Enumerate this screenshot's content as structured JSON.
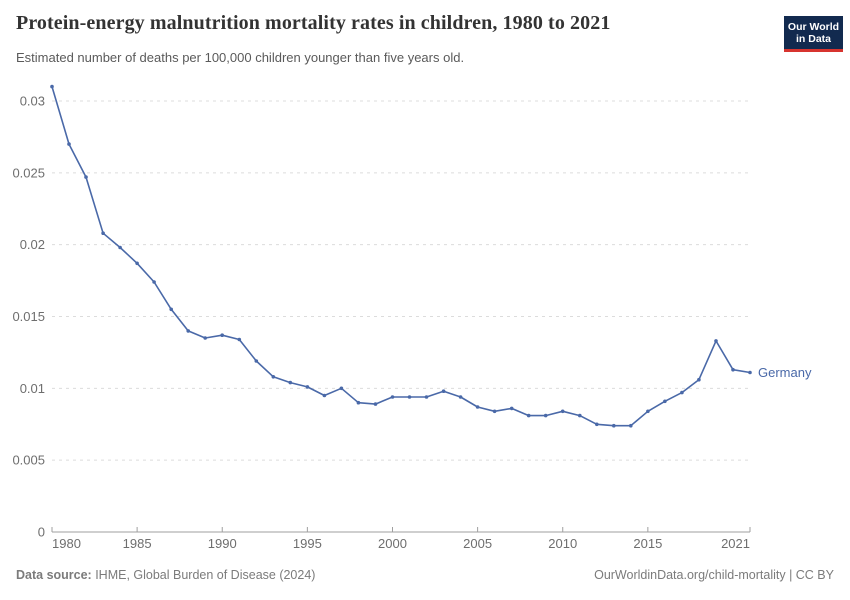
{
  "header": {
    "title": "Protein-energy malnutrition mortality rates in children, 1980 to 2021",
    "subtitle": "Estimated number of deaths per 100,000 children younger than five years old.",
    "logo": {
      "line1": "Our World",
      "line2": "in Data",
      "bg_color": "#122A4F",
      "bar_color": "#D7342F"
    }
  },
  "chart_data": {
    "type": "line",
    "title": "Protein-energy malnutrition mortality rates in children, 1980 to 2021",
    "subtitle": "Estimated number of deaths per 100,000 children younger than five years old.",
    "xlabel": "",
    "ylabel": "",
    "xlim": [
      1980,
      2021
    ],
    "ylim": [
      0,
      0.031
    ],
    "grid": "horizontal-dashed",
    "legend": "end-of-line-label",
    "x_ticks": [
      {
        "value": 1980,
        "label": "1980"
      },
      {
        "value": 1985,
        "label": "1985"
      },
      {
        "value": 1990,
        "label": "1990"
      },
      {
        "value": 1995,
        "label": "1995"
      },
      {
        "value": 2000,
        "label": "2000"
      },
      {
        "value": 2005,
        "label": "2005"
      },
      {
        "value": 2010,
        "label": "2010"
      },
      {
        "value": 2015,
        "label": "2015"
      },
      {
        "value": 2021,
        "label": "2021"
      }
    ],
    "y_ticks": [
      {
        "value": 0,
        "label": "0"
      },
      {
        "value": 0.005,
        "label": "0.005"
      },
      {
        "value": 0.01,
        "label": "0.01"
      },
      {
        "value": 0.015,
        "label": "0.015"
      },
      {
        "value": 0.02,
        "label": "0.02"
      },
      {
        "value": 0.025,
        "label": "0.025"
      },
      {
        "value": 0.03,
        "label": "0.03"
      }
    ],
    "series": [
      {
        "name": "Germany",
        "color": "#4A69A8",
        "years": [
          1980,
          1981,
          1982,
          1983,
          1984,
          1985,
          1986,
          1987,
          1988,
          1989,
          1990,
          1991,
          1992,
          1993,
          1994,
          1995,
          1996,
          1997,
          1998,
          1999,
          2000,
          2001,
          2002,
          2003,
          2004,
          2005,
          2006,
          2007,
          2008,
          2009,
          2010,
          2011,
          2012,
          2013,
          2014,
          2015,
          2016,
          2017,
          2018,
          2019,
          2020,
          2021
        ],
        "values": [
          0.031,
          0.027,
          0.0247,
          0.0208,
          0.0198,
          0.0187,
          0.0174,
          0.0155,
          0.014,
          0.0135,
          0.0137,
          0.0134,
          0.0119,
          0.0108,
          0.0104,
          0.0101,
          0.0095,
          0.01,
          0.009,
          0.0089,
          0.0094,
          0.0094,
          0.0094,
          0.0098,
          0.0094,
          0.0087,
          0.0084,
          0.0086,
          0.0081,
          0.0081,
          0.0084,
          0.0081,
          0.0075,
          0.0074,
          0.0074,
          0.0084,
          0.0091,
          0.0097,
          0.0106,
          0.0133,
          0.0113,
          0.0111
        ]
      }
    ]
  },
  "footer": {
    "source_label": "Data source:",
    "source_text": " IHME, Global Burden of Disease (2024)",
    "credit": "OurWorldinData.org/child-mortality | CC BY"
  }
}
